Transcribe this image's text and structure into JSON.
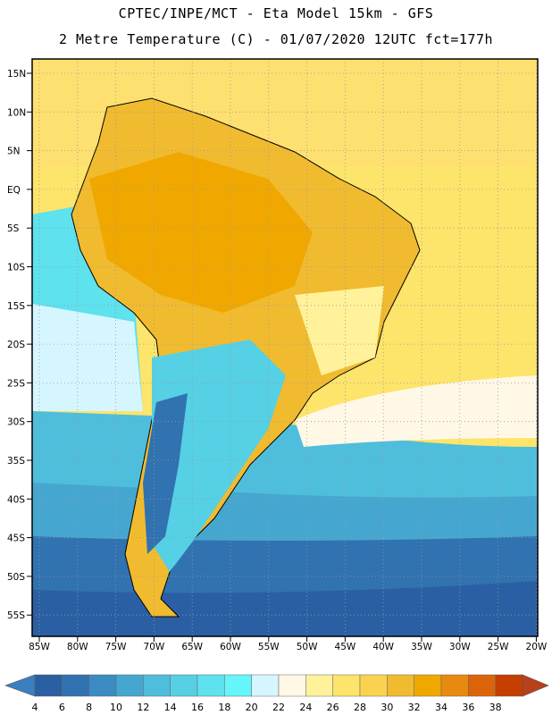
{
  "header": {
    "title_line1": "CPTEC/INPE/MCT -  Eta Model 15km - GFS",
    "title_line2": "2 Metre Temperature (C) - 01/07/2020 12UTC fct=177h"
  },
  "map": {
    "lat_labels": [
      "15N",
      "10N",
      "5N",
      "EQ",
      "5S",
      "10S",
      "15S",
      "20S",
      "25S",
      "30S",
      "35S",
      "40S",
      "45S",
      "50S",
      "55S"
    ],
    "lon_labels": [
      "85W",
      "80W",
      "75W",
      "70W",
      "65W",
      "60W",
      "55W",
      "50W",
      "45W",
      "40W",
      "35W",
      "30W",
      "25W",
      "20W"
    ]
  },
  "colorbar": {
    "values": [
      "4",
      "6",
      "8",
      "10",
      "12",
      "14",
      "16",
      "18",
      "20",
      "22",
      "24",
      "26",
      "28",
      "30",
      "32",
      "34",
      "36",
      "38"
    ],
    "colors": [
      "#2b5fa3",
      "#3172b0",
      "#3a8cc2",
      "#45a7d0",
      "#4fbedc",
      "#56d0e4",
      "#5de2ee",
      "#66f5fb",
      "#d6f6ff",
      "#fff8e6",
      "#fff29a",
      "#fde46a",
      "#f9d350",
      "#f1bb30",
      "#f0a800",
      "#e88a10",
      "#dc6408",
      "#c43e00"
    ],
    "left_arrow_color": "#3a7fbf",
    "right_arrow_color": "#b8401a"
  }
}
